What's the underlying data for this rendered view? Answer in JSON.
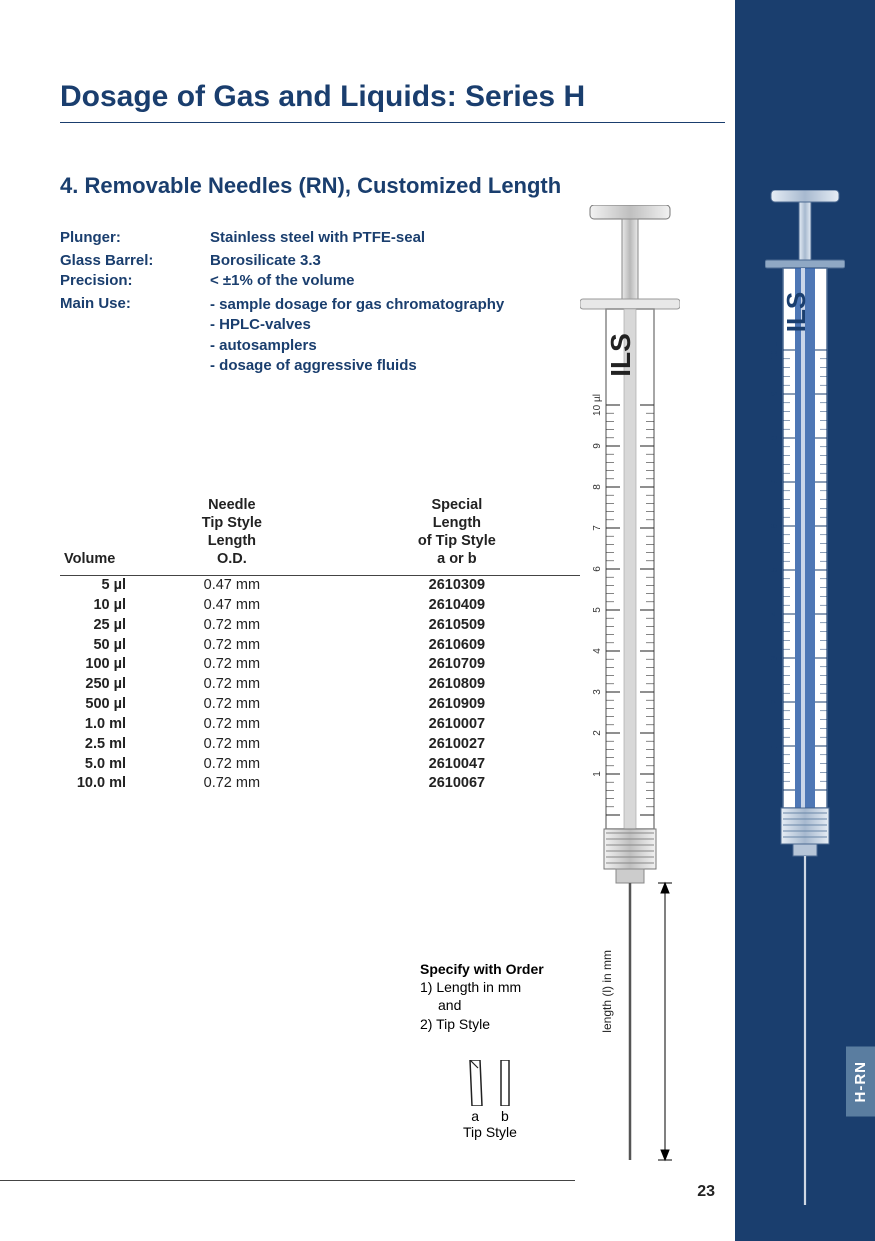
{
  "title": "Dosage of Gas and Liquids: Series H",
  "subtitle": "4. Removable Needles (RN), Customized Length",
  "specs": {
    "plunger": {
      "label": "Plunger:",
      "value": "Stainless steel with PTFE-seal"
    },
    "barrel": {
      "label": "Glass Barrel:",
      "value": "Borosilicate 3.3"
    },
    "precision": {
      "label": "Precision:",
      "value": "< ±1% of the volume"
    },
    "use": {
      "label": "Main Use:",
      "items": [
        "- sample dosage for gas chromatography",
        "- HPLC-valves",
        "- autosamplers",
        "- dosage of aggressive fluids"
      ]
    }
  },
  "table": {
    "headers": {
      "volume": "Volume",
      "needle": "Needle\nTip Style\nLength\nO.D.",
      "special": "Special\nLength\nof Tip Style\na or b"
    },
    "rows": [
      {
        "vol": "5 µl",
        "od": "0.47 mm",
        "code": "2610309"
      },
      {
        "vol": "10 µl",
        "od": "0.47 mm",
        "code": "2610409"
      },
      {
        "vol": "25 µl",
        "od": "0.72 mm",
        "code": "2610509"
      },
      {
        "vol": "50 µl",
        "od": "0.72 mm",
        "code": "2610609"
      },
      {
        "vol": "100 µl",
        "od": "0.72 mm",
        "code": "2610709"
      },
      {
        "vol": "250 µl",
        "od": "0.72 mm",
        "code": "2610809"
      },
      {
        "vol": "500 µl",
        "od": "0.72 mm",
        "code": "2610909"
      },
      {
        "vol": "1.0 ml",
        "od": "0.72 mm",
        "code": "2610007"
      },
      {
        "vol": "2.5 ml",
        "od": "0.72 mm",
        "code": "2610027"
      },
      {
        "vol": "5.0 ml",
        "od": "0.72 mm",
        "code": "2610047"
      },
      {
        "vol": "10.0 ml",
        "od": "0.72 mm",
        "code": "2610067"
      }
    ]
  },
  "order": {
    "heading": "Specify with Order",
    "line1": "1) Length in mm",
    "line1b": "and",
    "line2": "2) Tip Style"
  },
  "tip": {
    "a": "a",
    "b": "b",
    "label": "Tip Style"
  },
  "length_label": "length (l) in mm",
  "page_number": "23",
  "side_tab": "H-RN",
  "brand": "ILS",
  "scale_labels": [
    "1",
    "2",
    "3",
    "4",
    "5",
    "6",
    "7",
    "8",
    "9",
    "10 µl"
  ],
  "colors": {
    "navy": "#1a3e6e",
    "sidebar": "#1a3e6e",
    "tab": "#5a7da0",
    "highlight": "#3a6fb0",
    "metal1": "#cfcfcf",
    "metal2": "#9e9e9e"
  }
}
